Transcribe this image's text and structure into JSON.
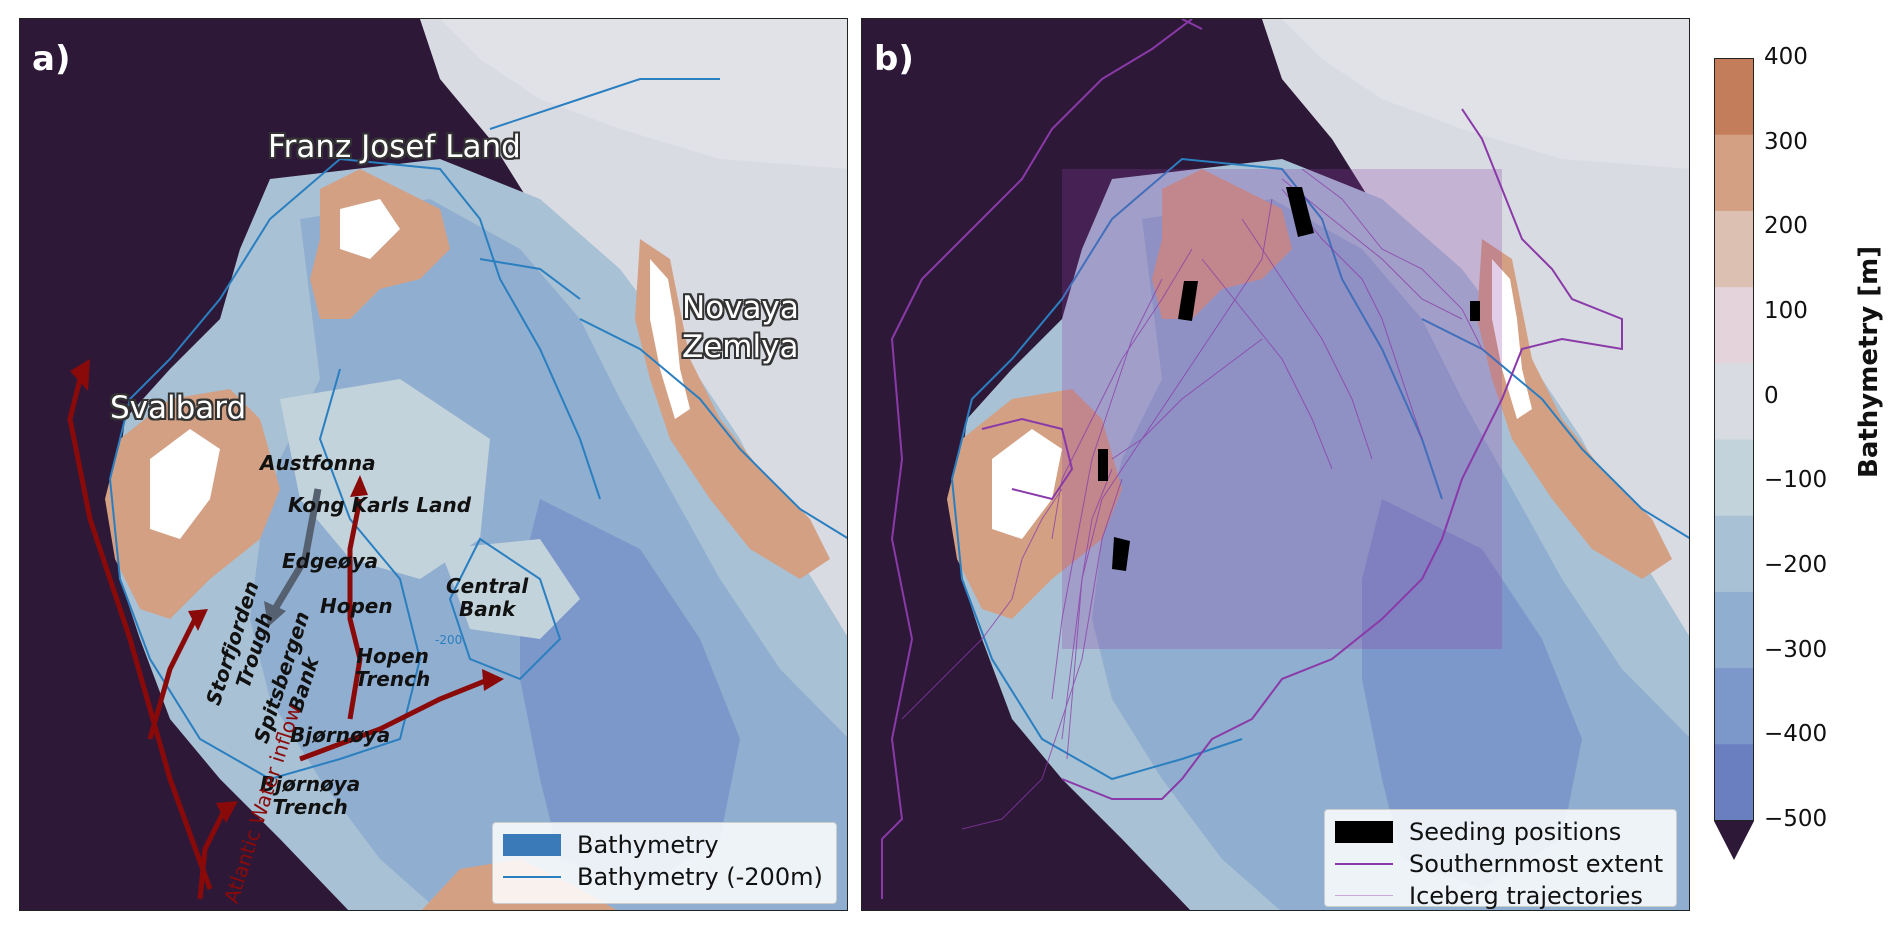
{
  "panel_a": {
    "letter": "a)",
    "regions": {
      "franz_josef_land": "Franz Josef Land",
      "novaya_zemlya": "Novaya\nZemlya",
      "svalbard": "Svalbard"
    },
    "features": {
      "austfonna": "Austfonna",
      "kong_karls_land": "Kong Karls Land",
      "edgeoya": "Edgeøya",
      "hopen": "Hopen",
      "central_bank": "Central\nBank",
      "storfjorden_trough": "Storfjorden\nTrough",
      "spitsbergen_bank": "Spitsbergen\nBank",
      "hopen_trench": "Hopen\nTrench",
      "bjornoya": "Bjørnøya",
      "bjornoya_trench": "Bjørnøya\nTrench",
      "atlantic_inflow": "Atlantic Water inflow",
      "contour_label": "-200"
    },
    "legend": {
      "bathymetry": "Bathymetry",
      "bathymetry_200": "Bathymetry (-200m)"
    }
  },
  "panel_b": {
    "letter": "b)",
    "legend": {
      "seeding": "Seeding positions",
      "southernmost": "Southernmost extent",
      "trajectories": "Iceberg trajectories"
    }
  },
  "colorbar": {
    "label": "Bathymetry [m]",
    "ticks": [
      "400",
      "300",
      "200",
      "100",
      "0",
      "−100",
      "−200",
      "−300",
      "−400",
      "−500"
    ],
    "range": [
      -500,
      400
    ],
    "extend": "min",
    "colors": [
      "#6a7fc0",
      "#7c97c9",
      "#90aecf",
      "#a8c1d4",
      "#c3d3dc",
      "#d9dbe3",
      "#e4d3da",
      "#dcc0b2",
      "#d3a084",
      "#c47d5b"
    ],
    "below_color": "#2e1838"
  },
  "colors": {
    "deep_ocean": "#2e1838",
    "contour": "#2a7fc0",
    "trajectory": "#8a3aa8",
    "arrow_red": "#8a0a0a",
    "arrow_gray": "#556070"
  }
}
